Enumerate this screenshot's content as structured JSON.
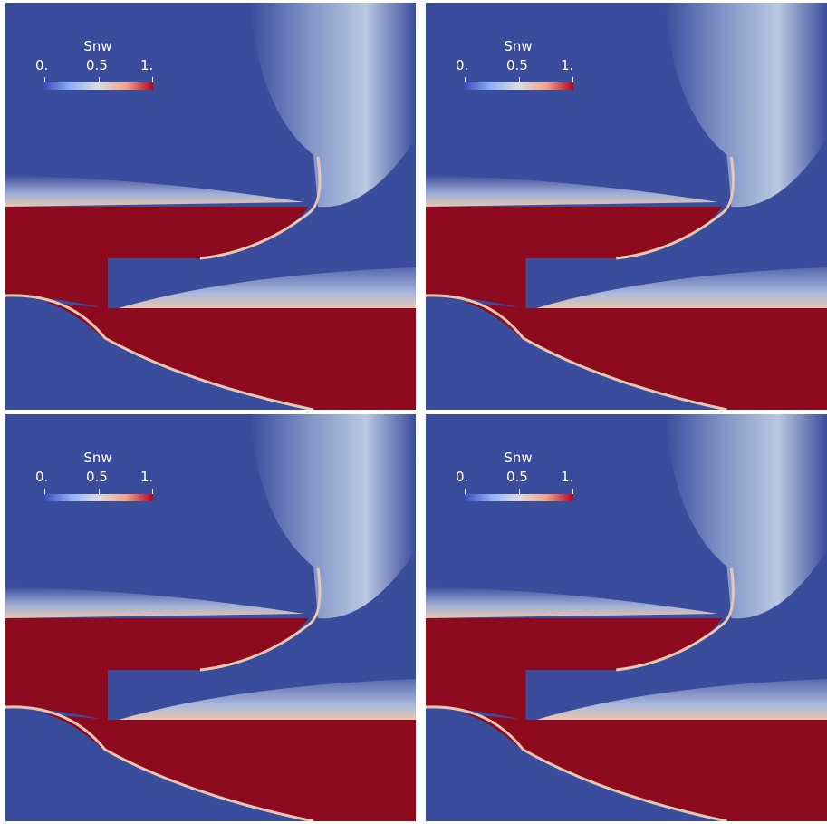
{
  "colors": {
    "background": "#3a4c9c",
    "saturated": "#8e0a1f",
    "plume": "#b9c8e0",
    "interface": "#e8c6b0",
    "text": "#ffffff"
  },
  "colorbar": {
    "title": "Snw",
    "ticks": [
      "0.",
      "0.5",
      "1."
    ],
    "colormap": [
      "#3b4cc0",
      "#93b4f4",
      "#dddddd",
      "#f4a384",
      "#b40426"
    ]
  },
  "panels": [
    {
      "name": "panel-top-left",
      "colorbar_title": "Snw",
      "ticks": [
        "0.",
        "0.5",
        "1."
      ]
    },
    {
      "name": "panel-top-right",
      "colorbar_title": "Snw",
      "ticks": [
        "0.",
        "0.5",
        "1."
      ]
    },
    {
      "name": "panel-bottom-left",
      "colorbar_title": "Snw",
      "ticks": [
        "0.",
        "0.5",
        "1."
      ]
    },
    {
      "name": "panel-bottom-right",
      "colorbar_title": "Snw",
      "ticks": [
        "0.",
        "0.5",
        "1."
      ]
    }
  ]
}
